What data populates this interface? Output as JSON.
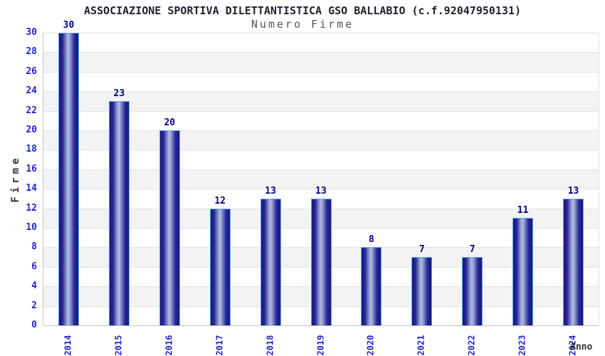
{
  "chart_data": {
    "type": "bar",
    "title": "ASSOCIAZIONE SPORTIVA DILETTANTISTICA GSO BALLABIO (c.f.92047950131)",
    "subtitle": "Numero Firme",
    "xlabel": "Anno",
    "ylabel": "Firme",
    "categories": [
      "2014",
      "2015",
      "2016",
      "2017",
      "2018",
      "2019",
      "2020",
      "2021",
      "2022",
      "2023",
      "2024"
    ],
    "values": [
      30,
      23,
      20,
      12,
      13,
      13,
      8,
      7,
      7,
      11,
      13
    ],
    "ylim": [
      0,
      30
    ],
    "ytick_step": 2,
    "legend": "none",
    "grid": "horizontal alternating bands",
    "colors": {
      "bar_dark": "#171780",
      "bar_mid": "#8b95cd",
      "bar_light": "#b4bde5",
      "bar_border": "#62a8e8",
      "value_label": "#000080",
      "tick_label": "#2424cd",
      "title": "#222230",
      "subtitle": "#555555",
      "axis_title": "#333333",
      "band_gray": "#f3f3f3",
      "band_white": "#ffffff",
      "gridline": "#e2e2e2",
      "background": "#ffffff"
    }
  }
}
